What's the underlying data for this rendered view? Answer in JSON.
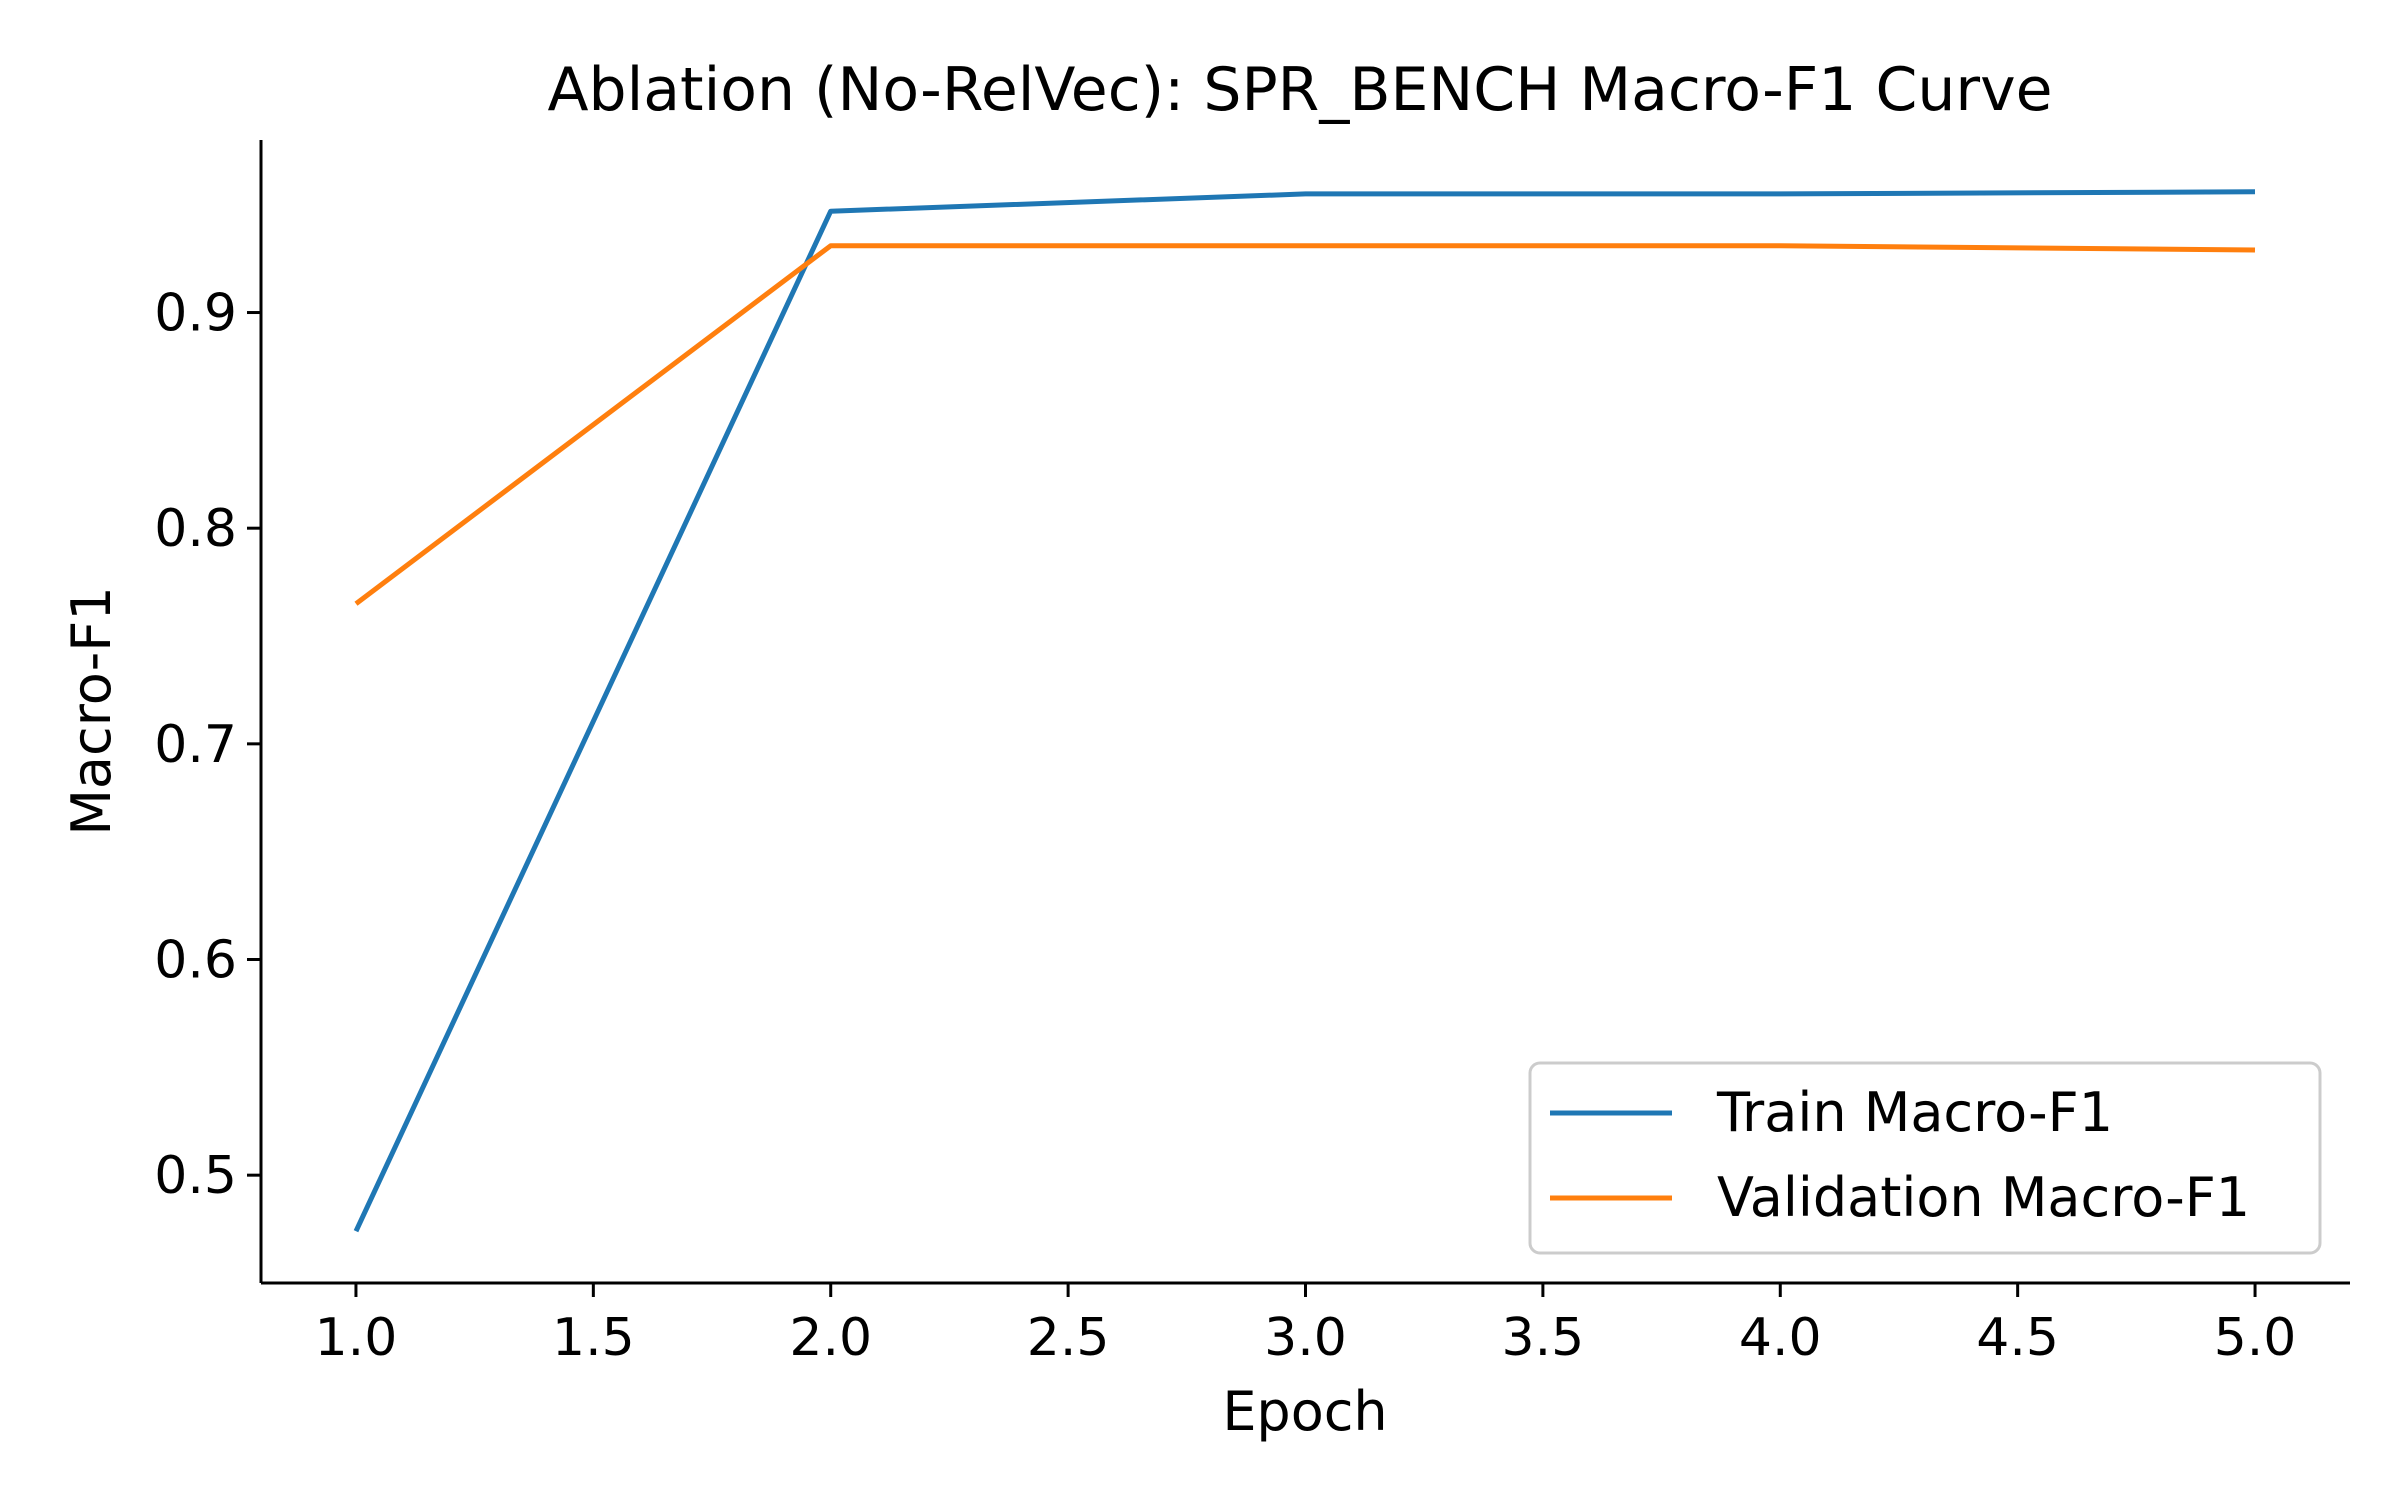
{
  "chart_data": {
    "type": "line",
    "title": "Ablation (No-RelVec): SPR_BENCH Macro-F1 Curve",
    "xlabel": "Epoch",
    "ylabel": "Macro-F1",
    "xlim": [
      0.8,
      5.2
    ],
    "ylim": [
      0.45,
      0.98
    ],
    "xticks": [
      "1.0",
      "1.5",
      "2.0",
      "2.5",
      "3.0",
      "3.5",
      "4.0",
      "4.5",
      "5.0"
    ],
    "yticks": [
      "0.5",
      "0.6",
      "0.7",
      "0.8",
      "0.9"
    ],
    "x": [
      1,
      2,
      3,
      4,
      5
    ],
    "series": [
      {
        "name": "Train Macro-F1",
        "color": "#1f77b4",
        "values": [
          0.474,
          0.947,
          0.955,
          0.955,
          0.956
        ]
      },
      {
        "name": "Validation Macro-F1",
        "color": "#ff7f0e",
        "values": [
          0.765,
          0.931,
          0.931,
          0.931,
          0.929
        ]
      }
    ],
    "legend": "lower-right",
    "grid": false
  }
}
